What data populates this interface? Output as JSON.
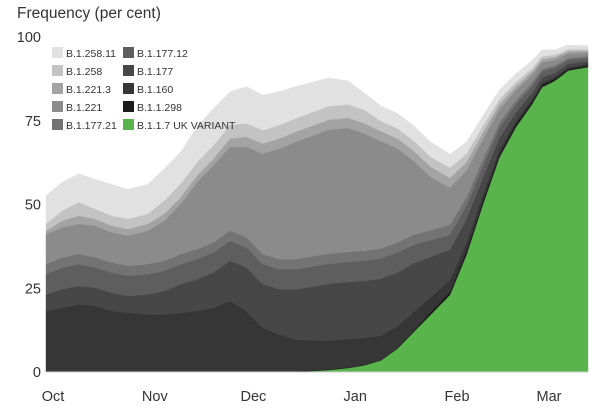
{
  "chart_data": {
    "type": "area",
    "y_title": "Frequency (per cent)",
    "ylim": [
      0,
      100
    ],
    "y_ticks": [
      0,
      25,
      50,
      75,
      100
    ],
    "x_ticks": [
      "Oct",
      "Nov",
      "Dec",
      "Jan",
      "Feb",
      "Mar"
    ],
    "x_tick_positions": [
      0,
      31,
      61,
      92,
      123,
      151
    ],
    "x": [
      0,
      5,
      10,
      15,
      20,
      25,
      31,
      36,
      41,
      46,
      51,
      56,
      61,
      66,
      71,
      76,
      81,
      86,
      92,
      97,
      102,
      107,
      112,
      117,
      123,
      128,
      133,
      138,
      143,
      148,
      151,
      155,
      159,
      165
    ],
    "stacked": true,
    "legend_position": "top-left",
    "series": [
      {
        "name": "B.1.1.7 UK VARIANT",
        "color": "#58b44b",
        "values": [
          0,
          0,
          0,
          0,
          0,
          0,
          0,
          0,
          0,
          0,
          0,
          0,
          0,
          0,
          0,
          0,
          0.3,
          0.6,
          1.2,
          2,
          3.5,
          7,
          12,
          17,
          23,
          35,
          50,
          64,
          73,
          80,
          85,
          87,
          90,
          91
        ]
      },
      {
        "name": "B.1.1.298",
        "color": "#1c1c1c",
        "values": [
          0.2,
          0.2,
          0.2,
          0.2,
          0.2,
          0.2,
          0.2,
          0.2,
          0.2,
          0.2,
          0.2,
          0.2,
          0.2,
          0.2,
          0.2,
          0.2,
          0.2,
          0.2,
          0.2,
          0.2,
          0.2,
          0.2,
          0.5,
          0.8,
          1,
          1.2,
          1.2,
          1,
          0.9,
          0.8,
          0.7,
          0.6,
          0.5,
          0.5
        ]
      },
      {
        "name": "B.1.160",
        "color": "#363636",
        "values": [
          18,
          19,
          20,
          19.5,
          18,
          17.5,
          17,
          17,
          17.5,
          18,
          19,
          21,
          18,
          13,
          11,
          9.5,
          9,
          8.5,
          8.5,
          8,
          7.2,
          6.5,
          5.5,
          4.5,
          3.5,
          2.5,
          1.8,
          1.4,
          1.0,
          0.8,
          0.7,
          0.6,
          0.5,
          0.5
        ]
      },
      {
        "name": "B.1.177",
        "color": "#474747",
        "values": [
          5,
          5.5,
          5.5,
          5.5,
          5.5,
          5,
          6,
          7,
          8.5,
          9.5,
          10.5,
          12,
          13,
          13,
          13.5,
          15,
          16,
          17,
          17,
          17,
          17,
          16,
          14.5,
          12,
          9,
          7,
          5,
          3.5,
          2.5,
          1.8,
          1.5,
          1.2,
          1,
          0.8
        ]
      },
      {
        "name": "B.1.177.12",
        "color": "#5e5e5e",
        "values": [
          6,
          6.5,
          6.5,
          6,
          6,
          6,
          6,
          6,
          6,
          6,
          6,
          6,
          6,
          6,
          6,
          6,
          6,
          6,
          6,
          6,
          6,
          6,
          5.5,
          5,
          4.5,
          4,
          3.5,
          3,
          2.5,
          2,
          1.8,
          1.5,
          1.2,
          1
        ]
      },
      {
        "name": "B.1.177.21",
        "color": "#737373",
        "values": [
          3,
          3,
          3,
          3,
          3,
          3,
          3,
          3,
          3,
          3,
          3,
          3,
          3,
          3,
          3,
          3,
          3,
          3,
          3,
          3,
          3,
          3,
          3,
          3,
          3,
          2.5,
          2,
          1.5,
          1.2,
          1,
          0.8,
          0.7,
          0.6,
          0.5
        ]
      },
      {
        "name": "B.1.221",
        "color": "#8b8b8b",
        "values": [
          9,
          9,
          9,
          9.5,
          9,
          9,
          10,
          12,
          15,
          20,
          23,
          25,
          27,
          30,
          33,
          35,
          36,
          37,
          37,
          35,
          32,
          28,
          22,
          16,
          11,
          8,
          6,
          4,
          3,
          2.3,
          2,
          1.6,
          1.3,
          1
        ]
      },
      {
        "name": "B.1.221.3",
        "color": "#a3a3a3",
        "values": [
          1,
          2,
          2.5,
          2,
          2,
          2,
          2,
          2,
          2,
          2,
          2,
          2.5,
          3,
          3,
          3,
          3,
          3,
          3,
          3,
          3,
          3,
          3,
          3,
          3,
          3,
          2.5,
          2,
          1.5,
          1.2,
          1,
          0.9,
          0.8,
          0.7,
          0.6
        ]
      },
      {
        "name": "B.1.258",
        "color": "#c3c3c3",
        "values": [
          2,
          3,
          4,
          3,
          3,
          3,
          3,
          4,
          4,
          4,
          4,
          4,
          4,
          4,
          4,
          4,
          4,
          4,
          4,
          4,
          3,
          3,
          3,
          3,
          3,
          2.5,
          2,
          1.5,
          1.2,
          1,
          0.8,
          0.7,
          0.6,
          0.5
        ]
      },
      {
        "name": "B.1.258.11",
        "color": "#e1e1e1",
        "values": [
          8.5,
          8.5,
          8.5,
          8.8,
          9.3,
          8.8,
          8.8,
          9.5,
          9.5,
          10.5,
          11,
          10,
          11,
          10.5,
          10,
          9.5,
          9,
          8.5,
          7,
          5,
          4.5,
          4.5,
          4.5,
          4.5,
          4,
          3.5,
          3,
          2.8,
          2.5,
          2.3,
          2,
          1.5,
          1.2,
          1
        ]
      }
    ]
  }
}
